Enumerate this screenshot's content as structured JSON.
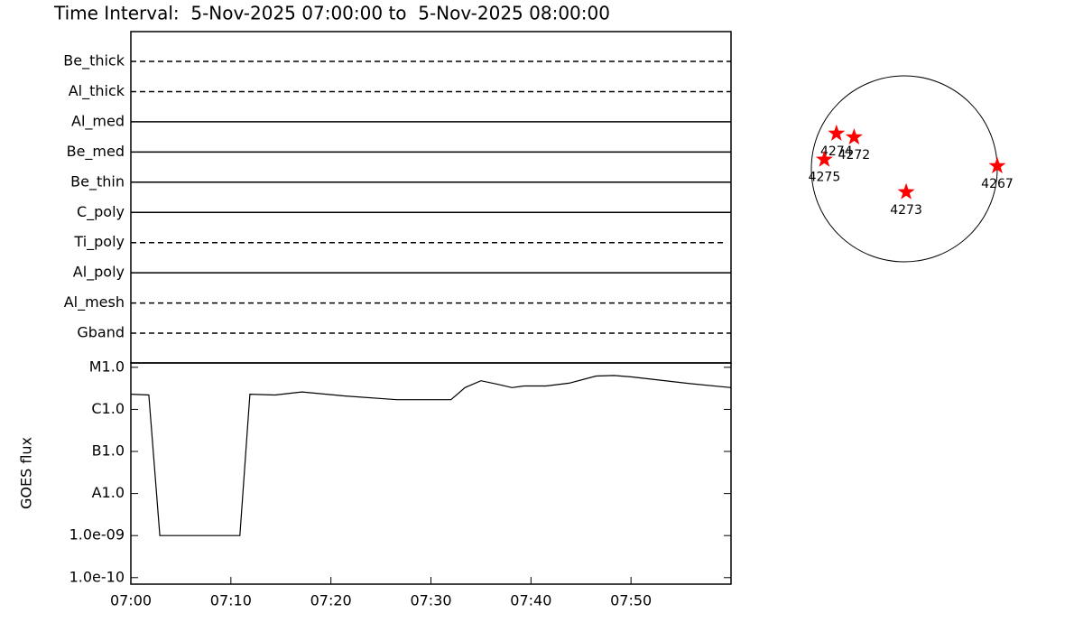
{
  "title": "Time Interval:  5-Nov-2025 07:00:00 to  5-Nov-2025 08:00:00",
  "chart_data": [
    {
      "type": "timeline",
      "xlim": [
        0,
        60
      ],
      "filters": [
        {
          "name": "Be_thick",
          "style": "dashed",
          "span": [
            0,
            60
          ]
        },
        {
          "name": "Al_thick",
          "style": "dashed",
          "span": [
            0,
            60
          ]
        },
        {
          "name": "Al_med",
          "style": "solid",
          "span": [
            0,
            60
          ]
        },
        {
          "name": "Be_med",
          "style": "solid",
          "span": [
            0,
            60
          ]
        },
        {
          "name": "Be_thin",
          "style": "solid",
          "span": [
            0,
            60
          ]
        },
        {
          "name": "C_poly",
          "style": "solid",
          "span": [
            0,
            60
          ]
        },
        {
          "name": "Ti_poly",
          "style": "dashed",
          "span": [
            0,
            59.5
          ]
        },
        {
          "name": "Al_poly",
          "style": "solid",
          "span": [
            0,
            60
          ]
        },
        {
          "name": "Al_mesh",
          "style": "dashed",
          "span": [
            0,
            60
          ]
        },
        {
          "name": "Gband",
          "style": "dashed",
          "span": [
            0,
            60
          ]
        }
      ]
    },
    {
      "type": "line",
      "y_label": "GOES flux",
      "log_y": true,
      "color": "#000000",
      "x": [
        0,
        1.8,
        2.9,
        10.9,
        11.9,
        14.4,
        17.1,
        21.2,
        26.6,
        32,
        33.4,
        35,
        36.6,
        38.1,
        39.3,
        41.5,
        43.8,
        46.5,
        48.3,
        50.1,
        55.5,
        60
      ],
      "values": [
        2.3e-06,
        2.2e-06,
        1e-09,
        1e-09,
        2.3e-06,
        2.2e-06,
        2.6e-06,
        2.1e-06,
        1.7e-06,
        1.7e-06,
        3.3e-06,
        4.8e-06,
        4e-06,
        3.3e-06,
        3.6e-06,
        3.6e-06,
        4.2e-06,
        6.2e-06,
        6.4e-06,
        5.9e-06,
        4.2e-06,
        3.3e-06
      ],
      "xlim": [
        0,
        60
      ],
      "xticks": [
        {
          "value": 0,
          "label": "07:00"
        },
        {
          "value": 10,
          "label": "07:10"
        },
        {
          "value": 20,
          "label": "07:20"
        },
        {
          "value": 30,
          "label": "07:30"
        },
        {
          "value": 40,
          "label": "07:40"
        },
        {
          "value": 50,
          "label": "07:50"
        }
      ],
      "ylim": [
        7e-11,
        1.27e-05
      ],
      "yticks": [
        {
          "value": 1e-05,
          "label": "M1.0"
        },
        {
          "value": 1e-06,
          "label": "C1.0"
        },
        {
          "value": 1e-07,
          "label": "B1.0"
        },
        {
          "value": 1e-08,
          "label": "A1.0"
        },
        {
          "value": 1e-09,
          "label": "1.0e-09"
        },
        {
          "value": 1e-10,
          "label": "1.0e-10"
        }
      ]
    },
    {
      "type": "scatter",
      "color": "#ff0000",
      "xlim": [
        -1,
        1
      ],
      "ylim": [
        -1,
        1
      ],
      "labels": [
        "4274",
        "4272",
        "4275",
        "4273",
        "4267"
      ],
      "x": [
        -0.73,
        -0.54,
        -0.86,
        0.02,
        1.0
      ],
      "values": [
        0.38,
        0.34,
        0.1,
        -0.25,
        0.03
      ]
    }
  ]
}
